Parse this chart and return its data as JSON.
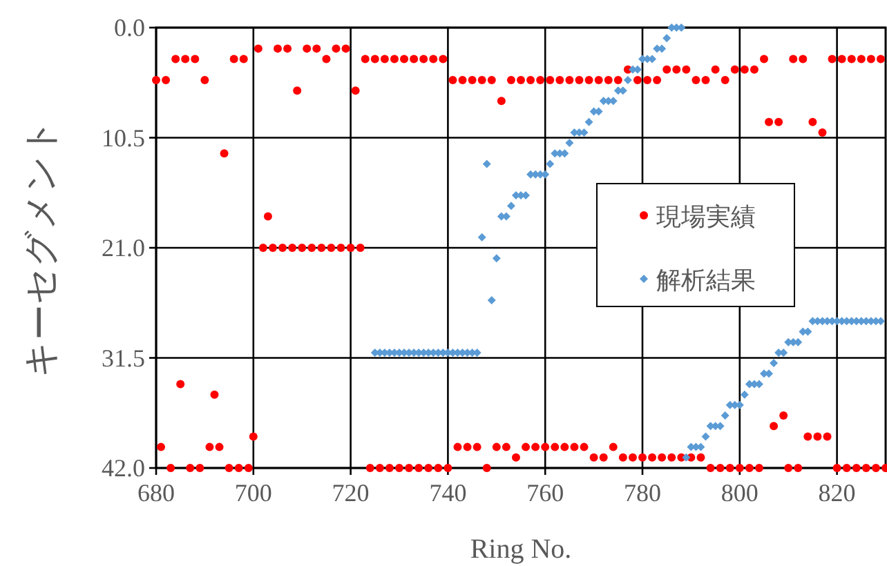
{
  "chart_data": {
    "type": "scatter",
    "xlabel": "Ring No.",
    "ylabel": "キーセグメント",
    "xlim": [
      680,
      830
    ],
    "ylim": [
      42,
      0
    ],
    "xticks": [
      680,
      700,
      720,
      740,
      760,
      780,
      800,
      820
    ],
    "yticks": [
      {
        "value": 0,
        "label": "0.0"
      },
      {
        "value": 10.5,
        "label": "10.5"
      },
      {
        "value": 21,
        "label": "21.0"
      },
      {
        "value": 31.5,
        "label": "31.5"
      },
      {
        "value": 42,
        "label": "42.0"
      }
    ],
    "grid": true,
    "legend": "right",
    "series": [
      {
        "name": "現場実績",
        "color": "#ff0000",
        "marker": "circle",
        "x": [
          680,
          681,
          682,
          683,
          684,
          685,
          686,
          687,
          688,
          689,
          690,
          691,
          692,
          693,
          694,
          695,
          696,
          697,
          698,
          699,
          700,
          701,
          702,
          703,
          704,
          705,
          706,
          707,
          708,
          709,
          710,
          711,
          712,
          713,
          714,
          715,
          716,
          717,
          718,
          719,
          720,
          721,
          722,
          723,
          724,
          725,
          726,
          727,
          728,
          729,
          730,
          731,
          732,
          733,
          734,
          735,
          736,
          737,
          738,
          739,
          740,
          741,
          742,
          743,
          744,
          745,
          746,
          747,
          748,
          749,
          750,
          751,
          752,
          753,
          754,
          755,
          756,
          757,
          758,
          759,
          760,
          761,
          762,
          763,
          764,
          765,
          766,
          767,
          768,
          769,
          770,
          771,
          772,
          773,
          774,
          775,
          776,
          777,
          778,
          779,
          780,
          781,
          782,
          783,
          784,
          785,
          786,
          787,
          788,
          789,
          790,
          791,
          792,
          793,
          794,
          795,
          796,
          797,
          798,
          799,
          800,
          801,
          802,
          803,
          804,
          805,
          806,
          807,
          808,
          809,
          810,
          811,
          812,
          813,
          814,
          815,
          816,
          817,
          818,
          819,
          820,
          821,
          822,
          823,
          824,
          825,
          826,
          827,
          828,
          829,
          830
        ],
        "values": [
          5,
          40,
          5,
          42,
          3,
          34,
          3,
          42,
          3,
          42,
          5,
          40,
          35,
          40,
          12,
          42,
          3,
          42,
          3,
          42,
          39,
          2,
          21,
          18,
          21,
          2,
          21,
          2,
          21,
          6,
          21,
          2,
          21,
          2,
          21,
          3,
          21,
          2,
          21,
          2,
          21,
          6,
          21,
          3,
          42,
          3,
          42,
          3,
          42,
          3,
          42,
          3,
          42,
          3,
          42,
          3,
          42,
          3,
          42,
          3,
          42,
          5,
          40,
          5,
          40,
          5,
          40,
          5,
          42,
          5,
          40,
          7,
          40,
          5,
          41,
          5,
          40,
          5,
          40,
          5,
          40,
          5,
          40,
          5,
          40,
          5,
          40,
          5,
          40,
          5,
          41,
          5,
          41,
          5,
          40,
          5,
          41,
          4,
          41,
          5,
          41,
          5,
          41,
          5,
          41,
          4,
          41,
          4,
          41,
          4,
          41,
          5,
          41,
          5,
          42,
          4,
          42,
          5,
          42,
          4,
          42,
          4,
          42,
          4,
          42,
          3,
          9,
          38,
          9,
          37,
          42,
          3,
          42,
          3,
          39,
          9,
          39,
          10,
          39,
          3,
          42,
          3,
          42,
          3,
          42,
          3,
          42,
          3,
          42,
          3,
          42
        ]
      },
      {
        "name": "解析結果",
        "color": "#5b9bd5",
        "marker": "diamond",
        "x": [
          725,
          726,
          727,
          728,
          729,
          730,
          731,
          732,
          733,
          734,
          735,
          736,
          737,
          738,
          739,
          740,
          741,
          742,
          743,
          744,
          745,
          746,
          747,
          748,
          749,
          750,
          751,
          752,
          753,
          754,
          755,
          756,
          757,
          758,
          759,
          760,
          761,
          762,
          763,
          764,
          765,
          766,
          767,
          768,
          769,
          770,
          771,
          772,
          773,
          774,
          775,
          776,
          777,
          778,
          779,
          780,
          781,
          782,
          783,
          784,
          785,
          786,
          787,
          788,
          789,
          790,
          791,
          792,
          793,
          794,
          795,
          796,
          797,
          798,
          799,
          800,
          801,
          802,
          803,
          804,
          805,
          806,
          807,
          808,
          809,
          810,
          811,
          812,
          813,
          814,
          815,
          816,
          817,
          818,
          819,
          820,
          821,
          822,
          823,
          824,
          825,
          826,
          827,
          828,
          829
        ],
        "values": [
          31,
          31,
          31,
          31,
          31,
          31,
          31,
          31,
          31,
          31,
          31,
          31,
          31,
          31,
          31,
          31,
          31,
          31,
          31,
          31,
          31,
          31,
          20,
          13,
          26,
          22,
          18,
          18,
          17,
          16,
          16,
          16,
          14,
          14,
          14,
          14,
          13,
          12,
          12,
          12,
          11,
          10,
          10,
          10,
          9,
          8,
          8,
          7,
          7,
          7,
          6,
          6,
          5,
          4,
          4,
          3,
          3,
          3,
          2,
          2,
          1,
          0,
          0,
          0,
          41,
          40,
          40,
          40,
          39,
          38,
          38,
          38,
          37,
          36,
          36,
          36,
          35,
          34,
          34,
          34,
          33,
          33,
          32,
          31,
          31,
          30,
          30,
          30,
          29,
          29,
          28,
          28,
          28,
          28,
          28,
          28,
          28,
          28,
          28,
          28,
          28,
          28,
          28,
          28,
          28
        ]
      }
    ]
  }
}
